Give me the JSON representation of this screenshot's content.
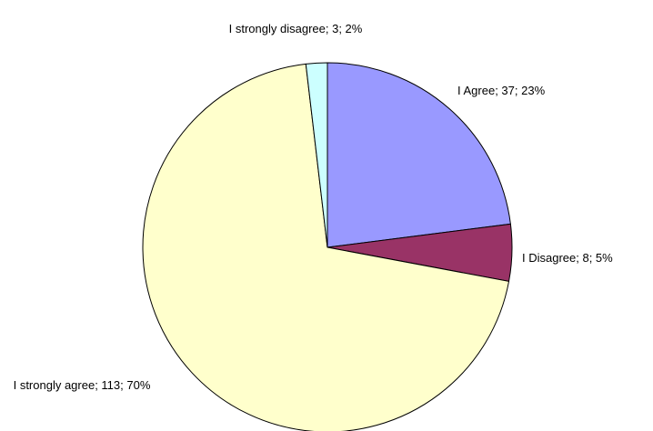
{
  "chart_data": {
    "type": "pie",
    "categories": [
      "I Agree",
      "I Disagree",
      "I strongly agree",
      "I strongly disagree"
    ],
    "values": [
      37,
      8,
      113,
      3
    ],
    "value_labels": [
      "I Agree; 37; 23%",
      "I Disagree; 8; 5%",
      "I strongly agree; 113; 70%",
      "I strongly disagree; 3; 2%"
    ],
    "colors": [
      "#9999ff",
      "#993366",
      "#ffffcc",
      "#ccffff"
    ]
  }
}
